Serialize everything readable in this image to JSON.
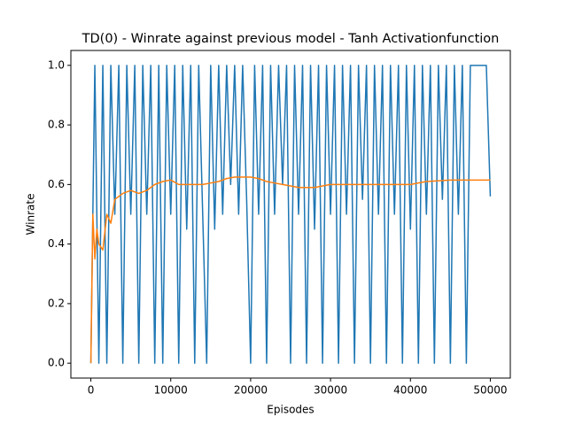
{
  "chart_data": {
    "type": "line",
    "title": "TD(0) - Winrate against previous model - Tanh Activationfunction",
    "x_label": "Episodes",
    "y_label": "Winrate",
    "xlim": [
      -2500,
      52500
    ],
    "xticks": [
      0,
      10000,
      20000,
      30000,
      40000,
      50000
    ],
    "ylim": [
      -0.05,
      1.05
    ],
    "yticks": [
      {
        "value": 0,
        "label": "0.0"
      },
      0.2,
      0.4,
      0.6,
      0.8,
      {
        "value": 1,
        "label": "1.0"
      }
    ],
    "series": [
      {
        "color": "#1f77b4",
        "x": [
          0,
          500,
          1000,
          1500,
          2000,
          2500,
          3000,
          3500,
          4000,
          4500,
          5000,
          5500,
          6000,
          6500,
          7000,
          7500,
          8000,
          8500,
          9000,
          9500,
          10000,
          10500,
          11000,
          11500,
          12000,
          12500,
          13000,
          13500,
          14000,
          14500,
          15000,
          15500,
          16000,
          16500,
          17000,
          17500,
          18000,
          18500,
          19000,
          19500,
          20000,
          20500,
          21000,
          21500,
          22000,
          22500,
          23000,
          23500,
          24000,
          24500,
          25000,
          25500,
          26000,
          26500,
          27000,
          27500,
          28000,
          28500,
          29000,
          29500,
          30000,
          30500,
          31000,
          31500,
          32000,
          32500,
          33000,
          33500,
          34000,
          34500,
          35000,
          35500,
          36000,
          36500,
          37000,
          37500,
          38000,
          38500,
          39000,
          39500,
          40000,
          40500,
          41000,
          41500,
          42000,
          42500,
          43000,
          43500,
          44000,
          44500,
          45000,
          45500,
          46000,
          46500,
          47000,
          47500,
          48000,
          48500,
          49000,
          49500,
          50000
        ],
        "values": [
          0,
          1,
          0,
          1,
          0,
          1,
          0.5,
          1,
          0,
          1,
          0.5,
          1,
          0,
          1,
          0.5,
          1,
          0,
          1,
          0,
          1,
          0.5,
          1,
          0,
          1,
          0.45,
          1,
          0,
          1,
          0.5,
          0,
          1,
          0.45,
          1,
          0.5,
          1,
          0.6,
          1,
          0.5,
          1,
          0.55,
          0,
          1,
          0.5,
          1,
          0,
          1,
          0.5,
          1,
          0.6,
          1,
          0,
          1,
          0.5,
          1,
          0,
          1,
          0.45,
          1,
          0,
          1,
          0.5,
          1,
          0,
          1,
          0.5,
          1,
          0,
          1,
          0.55,
          1,
          0,
          1,
          0.5,
          1,
          0,
          1,
          0.5,
          1,
          0,
          1,
          0.45,
          1,
          0,
          1,
          0.5,
          1,
          0,
          1,
          0.55,
          1,
          0,
          1,
          0.5,
          1,
          0,
          1,
          1,
          1,
          1,
          1,
          0.56
        ]
      },
      {
        "color": "#ff7f0e",
        "x": [
          0,
          250,
          500,
          750,
          1000,
          1500,
          2000,
          2500,
          3000,
          4000,
          5000,
          6000,
          7000,
          8000,
          9000,
          10000,
          11000,
          12000,
          13000,
          14000,
          15000,
          16000,
          17000,
          18000,
          19000,
          20000,
          21000,
          22000,
          23000,
          24000,
          25000,
          26000,
          27000,
          28000,
          29000,
          30000,
          32000,
          34000,
          36000,
          38000,
          40000,
          42000,
          45000,
          48000,
          50000
        ],
        "values": [
          0,
          0.5,
          0.35,
          0.45,
          0.4,
          0.38,
          0.5,
          0.47,
          0.55,
          0.57,
          0.58,
          0.57,
          0.58,
          0.6,
          0.61,
          0.615,
          0.6,
          0.6,
          0.6,
          0.6,
          0.605,
          0.61,
          0.62,
          0.625,
          0.625,
          0.625,
          0.62,
          0.61,
          0.605,
          0.6,
          0.595,
          0.59,
          0.59,
          0.59,
          0.595,
          0.6,
          0.6,
          0.6,
          0.6,
          0.6,
          0.6,
          0.61,
          0.615,
          0.615,
          0.615
        ]
      }
    ]
  }
}
